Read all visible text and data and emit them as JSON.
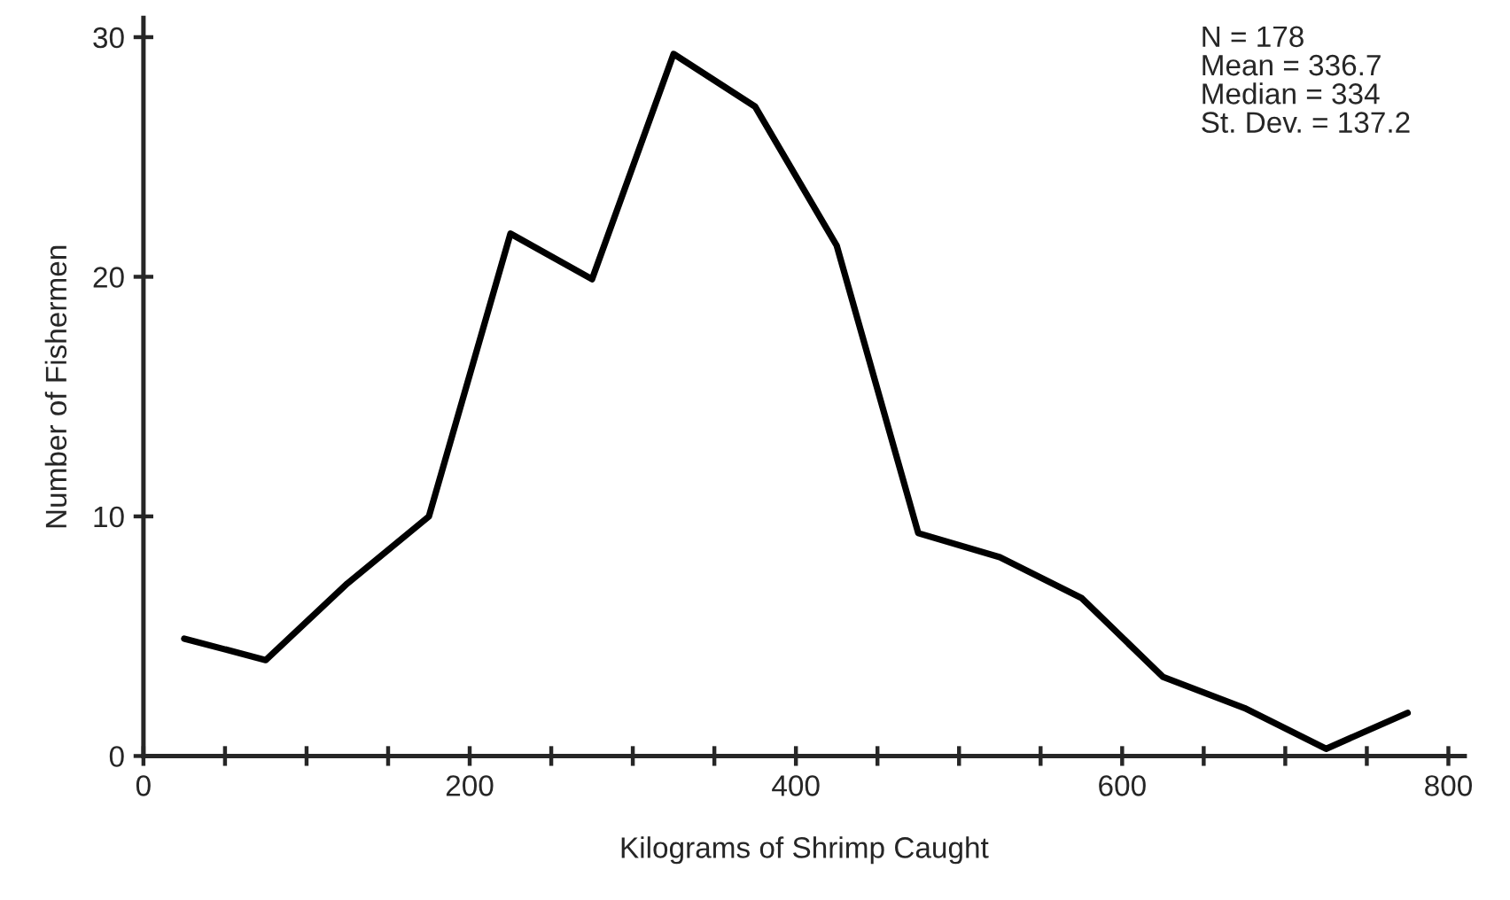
{
  "chart_data": {
    "type": "line",
    "xlabel": "Kilograms of Shrimp Caught",
    "ylabel": "Number of Fishermen",
    "x": [
      25,
      75,
      125,
      175,
      225,
      275,
      325,
      375,
      425,
      475,
      525,
      575,
      625,
      675,
      725,
      775
    ],
    "series": [
      {
        "color": "#000000",
        "values": [
          4.9,
          4.0,
          7.2,
          10.0,
          21.8,
          19.9,
          29.3,
          27.1,
          21.3,
          9.3,
          8.3,
          6.6,
          3.3,
          2.0,
          0.3,
          1.8
        ]
      }
    ],
    "xlim": [
      0,
      810
    ],
    "ylim": [
      0,
      30.8
    ],
    "xticks": [
      0,
      {
        "value": 50,
        "label": null
      },
      {
        "value": 100,
        "label": null
      },
      {
        "value": 150,
        "label": null
      },
      200,
      {
        "value": 250,
        "label": null
      },
      {
        "value": 300,
        "label": null
      },
      {
        "value": 350,
        "label": null
      },
      400,
      {
        "value": 450,
        "label": null
      },
      {
        "value": 500,
        "label": null
      },
      {
        "value": 550,
        "label": null
      },
      600,
      {
        "value": 650,
        "label": null
      },
      {
        "value": 700,
        "label": null
      },
      {
        "value": 750,
        "label": null
      },
      800
    ],
    "yticks": [
      0,
      10,
      20,
      30
    ],
    "annotations": [
      "N = 178\nMean = 336.7\nMedian = 334\nSt. Dev. = 137.2"
    ],
    "grid": false,
    "legend": false,
    "marker": "none",
    "line_style": "solid"
  }
}
